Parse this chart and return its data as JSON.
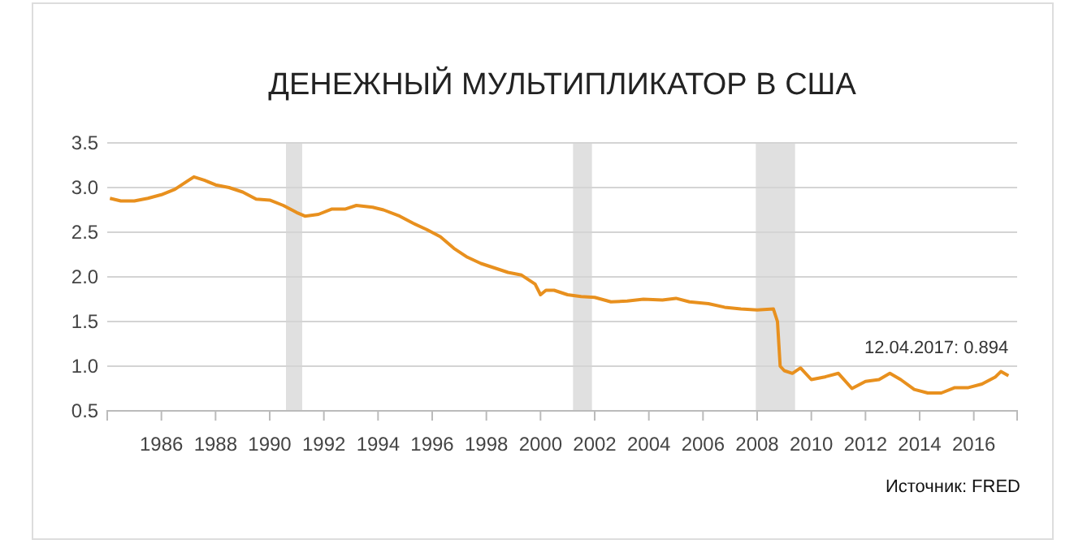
{
  "chart_data": {
    "type": "line",
    "title": "ДЕНЕЖНЫЙ МУЛЬТИПЛИКАТОР В США",
    "x": [
      1984.1,
      1984.5,
      1985.0,
      1985.5,
      1986.0,
      1986.5,
      1987.0,
      1987.2,
      1987.6,
      1988.0,
      1988.5,
      1989.0,
      1989.5,
      1990.0,
      1990.5,
      1991.0,
      1991.3,
      1991.8,
      1992.3,
      1992.8,
      1993.2,
      1993.8,
      1994.2,
      1994.8,
      1995.3,
      1995.8,
      1996.3,
      1996.8,
      1997.3,
      1997.8,
      1998.3,
      1998.8,
      1999.3,
      1999.8,
      2000.0,
      2000.2,
      2000.5,
      2001.0,
      2001.5,
      2002.0,
      2002.6,
      2003.2,
      2003.8,
      2004.5,
      2005.0,
      2005.5,
      2006.2,
      2006.8,
      2007.4,
      2008.0,
      2008.6,
      2008.75,
      2008.85,
      2009.0,
      2009.3,
      2009.6,
      2010.0,
      2010.5,
      2011.0,
      2011.5,
      2012.0,
      2012.5,
      2012.9,
      2013.3,
      2013.8,
      2014.3,
      2014.8,
      2015.3,
      2015.8,
      2016.3,
      2016.8,
      2017.0,
      2017.28
    ],
    "series": [
      {
        "color": "#e8901e",
        "values": [
          2.88,
          2.85,
          2.85,
          2.88,
          2.92,
          2.98,
          3.08,
          3.12,
          3.08,
          3.03,
          3.0,
          2.95,
          2.87,
          2.86,
          2.8,
          2.72,
          2.68,
          2.7,
          2.76,
          2.76,
          2.8,
          2.78,
          2.75,
          2.68,
          2.6,
          2.53,
          2.45,
          2.32,
          2.22,
          2.15,
          2.1,
          2.05,
          2.02,
          1.92,
          1.8,
          1.85,
          1.85,
          1.8,
          1.78,
          1.77,
          1.72,
          1.73,
          1.75,
          1.74,
          1.76,
          1.72,
          1.7,
          1.66,
          1.64,
          1.63,
          1.64,
          1.5,
          1.0,
          0.95,
          0.92,
          0.98,
          0.85,
          0.88,
          0.92,
          0.75,
          0.83,
          0.85,
          0.92,
          0.85,
          0.74,
          0.7,
          0.7,
          0.76,
          0.76,
          0.8,
          0.88,
          0.94,
          0.894
        ]
      }
    ],
    "xlim": [
      1984,
      2017.6
    ],
    "xticks": [
      1986,
      1988,
      1990,
      1992,
      1994,
      1996,
      1998,
      2000,
      2002,
      2004,
      2006,
      2008,
      2010,
      2012,
      2014,
      2016
    ],
    "ylim": [
      0.5,
      3.5
    ],
    "yticks": [
      {
        "value": 0.5,
        "label": "0.5"
      },
      {
        "value": 1,
        "label": "1.0"
      },
      {
        "value": 1.5,
        "label": "1.5"
      },
      {
        "value": 2,
        "label": "2.0"
      },
      {
        "value": 2.5,
        "label": "2.5"
      },
      {
        "value": 3,
        "label": "3.0"
      },
      {
        "value": 3.5,
        "label": "3.5"
      }
    ],
    "grid": "y",
    "bands": [
      {
        "axis": "x",
        "from": 1990.6,
        "to": 1991.2,
        "color": "#e0e0e0"
      },
      {
        "axis": "x",
        "from": 2001.2,
        "to": 2001.9,
        "color": "#e0e0e0"
      },
      {
        "axis": "x",
        "from": 2007.95,
        "to": 2009.4,
        "color": "#e0e0e0"
      }
    ],
    "annotations": [
      {
        "text": "12.04.2017: 0.894",
        "x": 2017.28,
        "y": 0.894
      },
      "Источник: FRED"
    ]
  }
}
